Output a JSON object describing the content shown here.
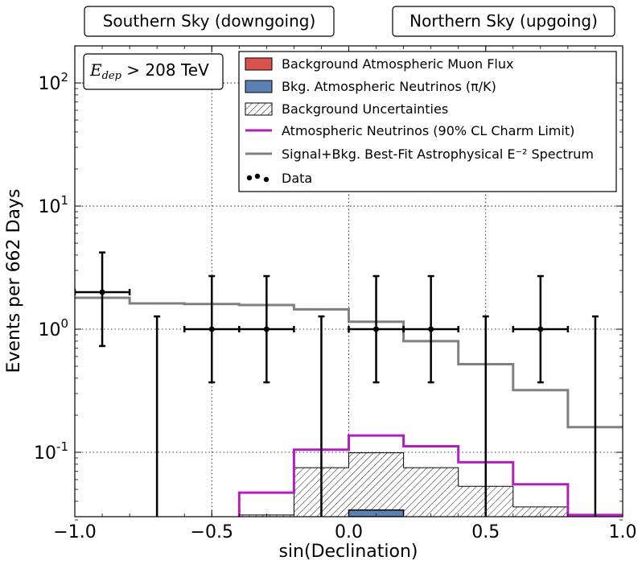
{
  "chart_data": {
    "type": "line",
    "headers": {
      "left": "Southern Sky (downgoing)",
      "right": "Northern Sky (upgoing)"
    },
    "cut_label": {
      "prefix": "E",
      "subscript": "dep",
      "suffix": " > 208 TeV"
    },
    "xlabel": "sin(Declination)",
    "ylabel": "Events per 662 Days",
    "xlim": [
      -1.0,
      1.0
    ],
    "ylim": [
      0.03,
      200
    ],
    "yscale": "log",
    "grid": true,
    "x_ticks": [
      {
        "value": -1.0,
        "label": "−1.0"
      },
      {
        "value": -0.5,
        "label": "−0.5"
      },
      {
        "value": 0.0,
        "label": "0.0"
      },
      {
        "value": 0.5,
        "label": "0.5"
      },
      {
        "value": 1.0,
        "label": "1.0"
      }
    ],
    "y_ticks": [
      {
        "value": 0.1,
        "base": "10",
        "exp": "-1"
      },
      {
        "value": 1,
        "base": "10",
        "exp": "0"
      },
      {
        "value": 10,
        "base": "10",
        "exp": "1"
      },
      {
        "value": 100,
        "base": "10",
        "exp": "2"
      }
    ],
    "legend_position": "top-right",
    "legend": [
      {
        "key": "muon",
        "label": "Background Atmospheric Muon Flux"
      },
      {
        "key": "atmnu",
        "label": "Bkg. Atmospheric Neutrinos (π/K)"
      },
      {
        "key": "unc",
        "label": "Background Uncertainties"
      },
      {
        "key": "charm",
        "label": "Atmospheric Neutrinos (90% CL Charm Limit)"
      },
      {
        "key": "signal",
        "label": "Signal+Bkg. Best-Fit Astrophysical E⁻² Spectrum"
      },
      {
        "key": "data",
        "label": "Data"
      }
    ],
    "bin_edges": [
      -1.0,
      -0.8,
      -0.6,
      -0.4,
      -0.2,
      0.0,
      0.2,
      0.4,
      0.6,
      0.8,
      1.0
    ],
    "series": [
      {
        "key": "signal",
        "values": [
          1.8,
          1.62,
          1.6,
          1.57,
          1.45,
          1.15,
          0.8,
          0.52,
          0.32,
          0.16
        ]
      },
      {
        "key": "charm",
        "values": [
          0.0,
          0.0,
          0.0,
          0.047,
          0.105,
          0.137,
          0.112,
          0.083,
          0.055,
          0.031
        ]
      },
      {
        "key": "unc",
        "values": [
          0.0,
          0.0,
          0.0,
          0.031,
          0.075,
          0.099,
          0.075,
          0.053,
          0.036,
          0.0
        ]
      },
      {
        "key": "atmnu",
        "values": [
          0.0,
          0.0,
          0.0,
          0.0,
          0.0,
          0.034,
          0.0,
          0.0,
          0.0,
          0.0
        ]
      }
    ],
    "data_points": [
      {
        "x": -0.9,
        "y": 2.0,
        "xerr": 0.1,
        "ylo": 0.73,
        "yhi": 4.2
      },
      {
        "x": -0.7,
        "y": 0.0,
        "yhi": 1.27,
        "upper_limit": true
      },
      {
        "x": -0.5,
        "y": 1.0,
        "xerr": 0.1,
        "ylo": 0.37,
        "yhi": 2.7
      },
      {
        "x": -0.3,
        "y": 1.0,
        "xerr": 0.1,
        "ylo": 0.37,
        "yhi": 2.7
      },
      {
        "x": -0.1,
        "y": 0.0,
        "yhi": 1.27,
        "upper_limit": true
      },
      {
        "x": 0.1,
        "y": 1.0,
        "xerr": 0.1,
        "ylo": 0.37,
        "yhi": 2.7
      },
      {
        "x": 0.3,
        "y": 1.0,
        "xerr": 0.1,
        "ylo": 0.37,
        "yhi": 2.7
      },
      {
        "x": 0.5,
        "y": 0.0,
        "yhi": 1.27,
        "upper_limit": true
      },
      {
        "x": 0.7,
        "y": 1.0,
        "xerr": 0.1,
        "ylo": 0.37,
        "yhi": 2.7
      },
      {
        "x": 0.9,
        "y": 0.0,
        "yhi": 1.27,
        "upper_limit": true
      }
    ],
    "colors": {
      "muon": "#d9534f",
      "atmnu": "#5b80b2",
      "charm": "#b21fbd",
      "signal": "#808080",
      "data": "#000000"
    }
  }
}
